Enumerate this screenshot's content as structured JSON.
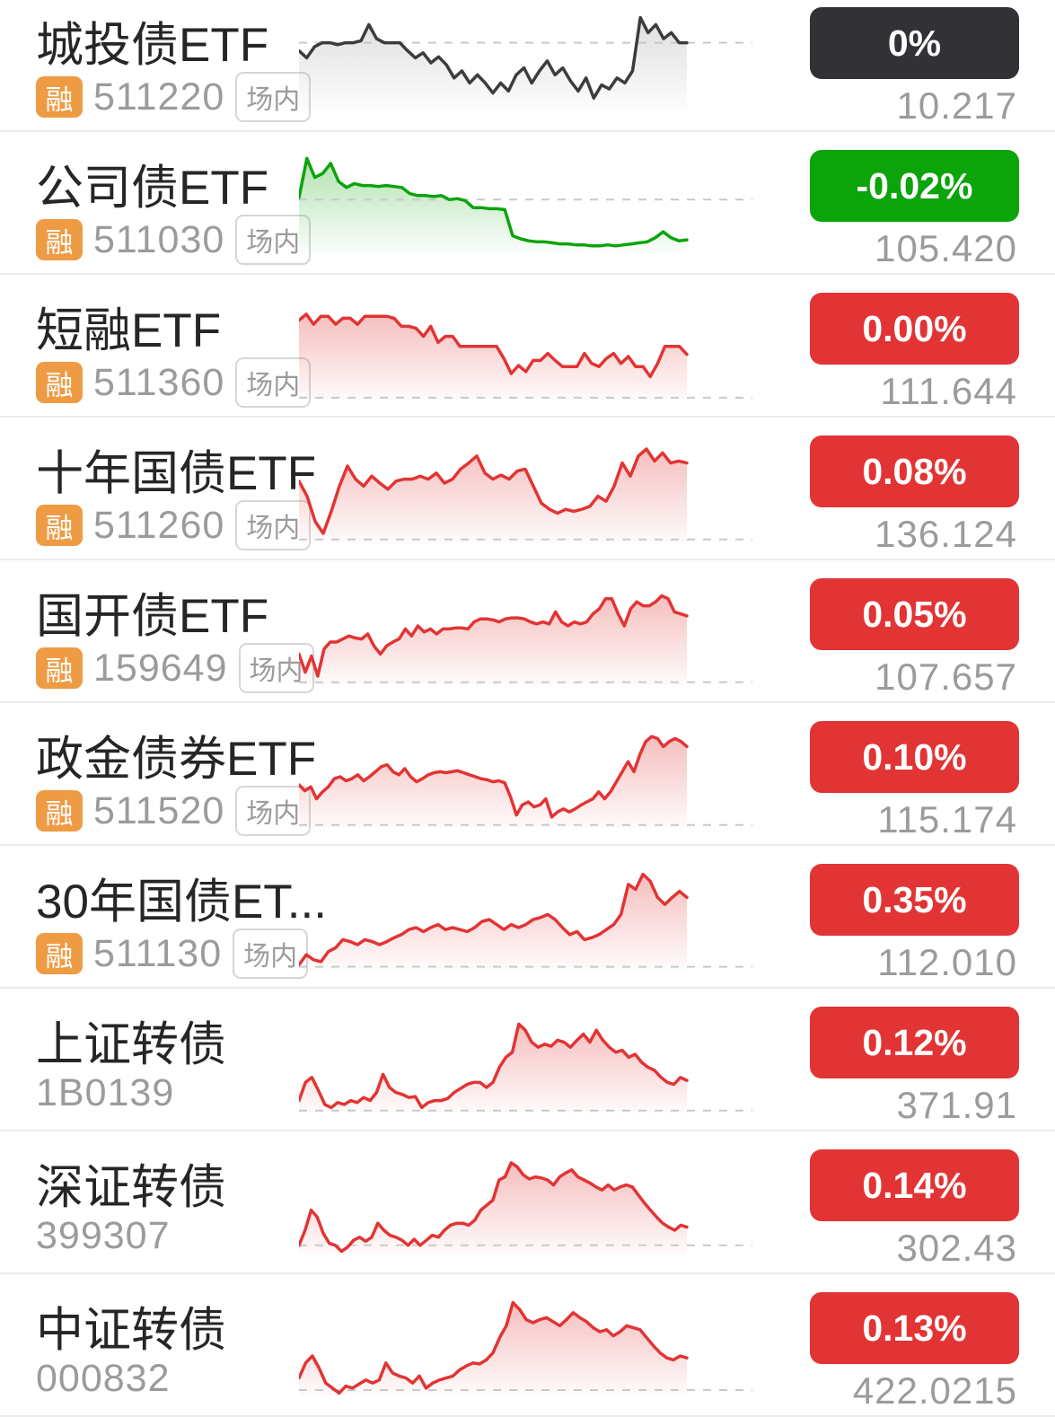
{
  "colors": {
    "up": "#e23434",
    "down": "#0ba40b",
    "flat": "#313136",
    "name_text": "#262626",
    "muted_text": "#9b9b9b",
    "badge_bg": "#ee9b44",
    "tag_border": "#d6d6d6",
    "separator": "#ececec",
    "dash_line": "#c9c9c9",
    "gray_line": "#3c3c40"
  },
  "rows": [
    {
      "name": "城投债ETF",
      "margin_badge": "融",
      "code": "511220",
      "market_tag": "场内",
      "change": "0%",
      "change_type": "flat",
      "price": "10.217",
      "chart": {
        "color": "#3c3c40",
        "fill": "#9a9a9a",
        "ref": 0.7,
        "base": 0.04,
        "values": [
          0.62,
          0.55,
          0.66,
          0.7,
          0.7,
          0.68,
          0.7,
          0.7,
          0.72,
          0.88,
          0.74,
          0.7,
          0.7,
          0.7,
          0.62,
          0.55,
          0.6,
          0.5,
          0.56,
          0.48,
          0.35,
          0.42,
          0.3,
          0.38,
          0.3,
          0.2,
          0.3,
          0.22,
          0.38,
          0.45,
          0.3,
          0.42,
          0.52,
          0.38,
          0.45,
          0.32,
          0.22,
          0.35,
          0.15,
          0.28,
          0.24,
          0.35,
          0.3,
          0.42,
          0.95,
          0.8,
          0.88,
          0.74,
          0.8,
          0.7,
          0.7
        ]
      }
    },
    {
      "name": "公司债ETF",
      "margin_badge": "融",
      "code": "511030",
      "market_tag": "场内",
      "change": "-0.02%",
      "change_type": "down",
      "price": "105.420",
      "chart": {
        "color": "#0ba40b",
        "fill": "#0ba40b",
        "ref": 0.56,
        "base": 0.06,
        "values": [
          0.58,
          0.97,
          0.78,
          0.82,
          0.92,
          0.74,
          0.68,
          0.72,
          0.7,
          0.7,
          0.69,
          0.7,
          0.69,
          0.68,
          0.62,
          0.6,
          0.6,
          0.59,
          0.6,
          0.56,
          0.57,
          0.55,
          0.48,
          0.48,
          0.47,
          0.47,
          0.46,
          0.2,
          0.17,
          0.15,
          0.14,
          0.14,
          0.13,
          0.12,
          0.12,
          0.11,
          0.11,
          0.1,
          0.1,
          0.11,
          0.1,
          0.11,
          0.12,
          0.13,
          0.14,
          0.18,
          0.24,
          0.18,
          0.15,
          0.16
        ]
      }
    },
    {
      "name": "短融ETF",
      "margin_badge": "融",
      "code": "511360",
      "market_tag": "场内",
      "change": "0.00%",
      "change_type": "up",
      "price": "111.644",
      "chart": {
        "color": "#e23434",
        "fill": "#e23434",
        "ref": 0.01,
        "values": [
          0.78,
          0.84,
          0.74,
          0.82,
          0.82,
          0.74,
          0.8,
          0.8,
          0.74,
          0.82,
          0.82,
          0.82,
          0.82,
          0.8,
          0.72,
          0.72,
          0.7,
          0.62,
          0.72,
          0.56,
          0.62,
          0.62,
          0.52,
          0.52,
          0.52,
          0.52,
          0.52,
          0.52,
          0.4,
          0.25,
          0.33,
          0.27,
          0.38,
          0.38,
          0.45,
          0.38,
          0.32,
          0.32,
          0.32,
          0.45,
          0.35,
          0.32,
          0.4,
          0.45,
          0.35,
          0.42,
          0.32,
          0.32,
          0.22,
          0.35,
          0.52,
          0.52,
          0.52,
          0.44
        ]
      }
    },
    {
      "name": "十年国债ETF",
      "margin_badge": "融",
      "code": "511260",
      "market_tag": "场内",
      "change": "0.08%",
      "change_type": "up",
      "price": "136.124",
      "chart": {
        "color": "#e23434",
        "fill": "#e23434",
        "ref": 0.02,
        "values": [
          0.6,
          0.45,
          0.2,
          0.08,
          0.3,
          0.55,
          0.75,
          0.62,
          0.55,
          0.65,
          0.58,
          0.52,
          0.6,
          0.62,
          0.62,
          0.65,
          0.62,
          0.68,
          0.58,
          0.62,
          0.72,
          0.78,
          0.85,
          0.68,
          0.62,
          0.66,
          0.62,
          0.7,
          0.72,
          0.55,
          0.38,
          0.32,
          0.28,
          0.32,
          0.3,
          0.32,
          0.35,
          0.45,
          0.4,
          0.55,
          0.78,
          0.65,
          0.85,
          0.92,
          0.8,
          0.88,
          0.78,
          0.8,
          0.78
        ]
      }
    },
    {
      "name": "国开债ETF",
      "margin_badge": "融",
      "code": "159649",
      "market_tag": "场内",
      "change": "0.05%",
      "change_type": "up",
      "price": "107.657",
      "chart": {
        "color": "#e23434",
        "fill": "#e23434",
        "ref": 0.02,
        "values": [
          0.3,
          0.12,
          0.28,
          0.08,
          0.35,
          0.42,
          0.42,
          0.45,
          0.48,
          0.46,
          0.45,
          0.5,
          0.38,
          0.3,
          0.38,
          0.42,
          0.45,
          0.55,
          0.48,
          0.58,
          0.52,
          0.55,
          0.5,
          0.55,
          0.55,
          0.56,
          0.56,
          0.55,
          0.62,
          0.65,
          0.65,
          0.64,
          0.62,
          0.65,
          0.66,
          0.66,
          0.65,
          0.62,
          0.6,
          0.62,
          0.6,
          0.72,
          0.62,
          0.58,
          0.62,
          0.6,
          0.62,
          0.7,
          0.75,
          0.85,
          0.85,
          0.7,
          0.58,
          0.75,
          0.82,
          0.78,
          0.78,
          0.82,
          0.88,
          0.85,
          0.72,
          0.7,
          0.68
        ]
      }
    },
    {
      "name": "政金债券ETF",
      "margin_badge": "融",
      "code": "511520",
      "market_tag": "场内",
      "change": "0.10%",
      "change_type": "up",
      "price": "115.174",
      "chart": {
        "color": "#e23434",
        "fill": "#e23434",
        "ref": 0.02,
        "values": [
          0.42,
          0.36,
          0.4,
          0.28,
          0.35,
          0.4,
          0.48,
          0.5,
          0.46,
          0.48,
          0.52,
          0.46,
          0.5,
          0.55,
          0.6,
          0.62,
          0.55,
          0.52,
          0.58,
          0.5,
          0.45,
          0.48,
          0.52,
          0.54,
          0.55,
          0.54,
          0.55,
          0.56,
          0.54,
          0.52,
          0.5,
          0.48,
          0.47,
          0.45,
          0.46,
          0.44,
          0.3,
          0.12,
          0.22,
          0.25,
          0.2,
          0.22,
          0.28,
          0.1,
          0.15,
          0.18,
          0.15,
          0.18,
          0.22,
          0.25,
          0.28,
          0.35,
          0.28,
          0.35,
          0.45,
          0.55,
          0.65,
          0.55,
          0.72,
          0.85,
          0.9,
          0.88,
          0.8,
          0.85,
          0.88,
          0.85,
          0.8
        ]
      }
    },
    {
      "name": "30年国债ET...",
      "margin_badge": "融",
      "code": "511130",
      "market_tag": "场内",
      "change": "0.35%",
      "change_type": "up",
      "price": "112.010",
      "chart": {
        "color": "#e23434",
        "fill": "#e23434",
        "ref": 0.03,
        "values": [
          0.05,
          0.15,
          0.1,
          0.08,
          0.18,
          0.22,
          0.3,
          0.28,
          0.25,
          0.3,
          0.28,
          0.25,
          0.28,
          0.32,
          0.35,
          0.4,
          0.42,
          0.38,
          0.42,
          0.45,
          0.4,
          0.42,
          0.4,
          0.38,
          0.42,
          0.48,
          0.5,
          0.45,
          0.4,
          0.45,
          0.42,
          0.45,
          0.5,
          0.52,
          0.55,
          0.5,
          0.42,
          0.35,
          0.38,
          0.3,
          0.32,
          0.35,
          0.4,
          0.45,
          0.55,
          0.85,
          0.8,
          0.95,
          0.88,
          0.72,
          0.65,
          0.72,
          0.78,
          0.72
        ]
      }
    },
    {
      "name": "上证转债",
      "margin_badge": "",
      "code": "1B0139",
      "market_tag": "",
      "change": "0.12%",
      "change_type": "up",
      "price": "371.91",
      "chart": {
        "color": "#e23434",
        "fill": "#e23434",
        "ref": 0.02,
        "values": [
          0.12,
          0.3,
          0.35,
          0.22,
          0.08,
          0.05,
          0.1,
          0.08,
          0.12,
          0.1,
          0.15,
          0.12,
          0.2,
          0.38,
          0.25,
          0.2,
          0.18,
          0.15,
          0.16,
          0.05,
          0.1,
          0.12,
          0.12,
          0.14,
          0.2,
          0.24,
          0.28,
          0.3,
          0.3,
          0.25,
          0.3,
          0.45,
          0.55,
          0.6,
          0.88,
          0.82,
          0.7,
          0.65,
          0.68,
          0.66,
          0.72,
          0.7,
          0.65,
          0.72,
          0.78,
          0.7,
          0.82,
          0.72,
          0.65,
          0.6,
          0.62,
          0.55,
          0.58,
          0.5,
          0.45,
          0.42,
          0.35,
          0.3,
          0.28,
          0.35,
          0.32
        ]
      }
    },
    {
      "name": "深证转债",
      "margin_badge": "",
      "code": "399307",
      "market_tag": "",
      "change": "0.14%",
      "change_type": "up",
      "price": "302.43",
      "chart": {
        "color": "#e23434",
        "fill": "#e23434",
        "ref": 0.1,
        "values": [
          0.1,
          0.25,
          0.45,
          0.38,
          0.22,
          0.12,
          0.1,
          0.04,
          0.08,
          0.15,
          0.18,
          0.14,
          0.18,
          0.32,
          0.25,
          0.2,
          0.18,
          0.15,
          0.1,
          0.16,
          0.1,
          0.15,
          0.2,
          0.18,
          0.25,
          0.3,
          0.32,
          0.32,
          0.3,
          0.35,
          0.45,
          0.5,
          0.55,
          0.75,
          0.78,
          0.92,
          0.88,
          0.8,
          0.76,
          0.78,
          0.77,
          0.75,
          0.7,
          0.78,
          0.82,
          0.85,
          0.78,
          0.75,
          0.72,
          0.68,
          0.65,
          0.7,
          0.65,
          0.68,
          0.7,
          0.68,
          0.6,
          0.52,
          0.45,
          0.38,
          0.32,
          0.28,
          0.25,
          0.3,
          0.28
        ]
      }
    },
    {
      "name": "中证转债",
      "margin_badge": "",
      "code": "000832",
      "market_tag": "",
      "change": "0.13%",
      "change_type": "up",
      "price": "422.0215",
      "chart": {
        "color": "#e23434",
        "fill": "#e23434",
        "ref": 0.08,
        "values": [
          0.2,
          0.35,
          0.42,
          0.3,
          0.15,
          0.1,
          0.05,
          0.12,
          0.1,
          0.14,
          0.18,
          0.15,
          0.18,
          0.35,
          0.25,
          0.22,
          0.2,
          0.15,
          0.22,
          0.1,
          0.15,
          0.18,
          0.2,
          0.22,
          0.28,
          0.32,
          0.35,
          0.34,
          0.38,
          0.45,
          0.6,
          0.72,
          0.95,
          0.88,
          0.78,
          0.75,
          0.78,
          0.8,
          0.76,
          0.72,
          0.78,
          0.85,
          0.8,
          0.76,
          0.7,
          0.66,
          0.68,
          0.62,
          0.66,
          0.72,
          0.7,
          0.68,
          0.6,
          0.52,
          0.45,
          0.4,
          0.38,
          0.42,
          0.4
        ]
      }
    }
  ]
}
